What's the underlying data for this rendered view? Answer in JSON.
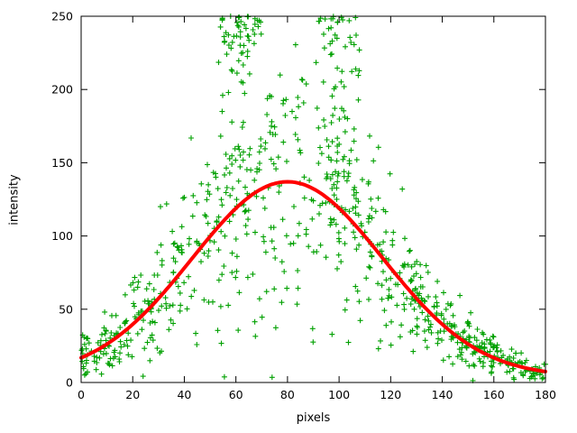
{
  "chart_data": {
    "type": "scatter",
    "title": "",
    "xlabel": "pixels",
    "ylabel": "intensity",
    "xlim": [
      0,
      180
    ],
    "ylim": [
      0,
      250
    ],
    "x_ticks": [
      0,
      20,
      40,
      60,
      80,
      100,
      120,
      140,
      160,
      180
    ],
    "y_ticks": [
      0,
      50,
      100,
      150,
      200,
      250
    ],
    "grid": false,
    "legend": "none",
    "background": "#ffffff",
    "border_color": "#000000",
    "series": [
      {
        "name": "intensity-samples",
        "kind": "scatter",
        "marker": "plus",
        "marker_size": 3,
        "color": "#00a000",
        "model": {
          "seed": 7,
          "count": 780,
          "rel_noise": 0.33,
          "abs_noise": 3,
          "tail_prob": 0.12,
          "tail_mult": 1.2,
          "clusters": [
            {
              "center": 62,
              "spread": 8,
              "count": 70,
              "mult": 1.9
            },
            {
              "center": 100,
              "spread": 8,
              "count": 60,
              "mult": 1.8
            }
          ]
        }
      },
      {
        "name": "gaussian-fit",
        "kind": "line",
        "color": "#ff0000",
        "width": 4,
        "gaussian": {
          "baseline": 4,
          "amplitude": 133,
          "mean": 80,
          "sigma": 37
        }
      }
    ]
  }
}
